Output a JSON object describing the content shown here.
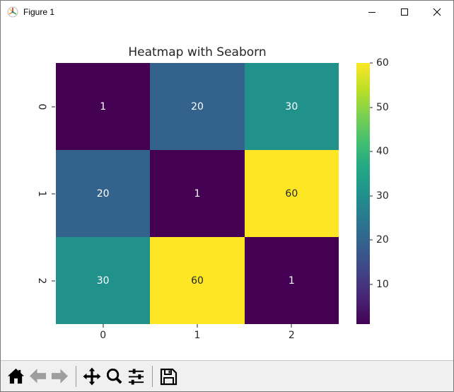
{
  "window": {
    "title": "Figure 1",
    "controls": [
      "minimize",
      "maximize",
      "close"
    ]
  },
  "chart_data": {
    "type": "heatmap",
    "title": "Heatmap with Seaborn",
    "colormap": "viridis",
    "vmin": 1,
    "vmax": 60,
    "x_tick_labels": [
      "0",
      "1",
      "2"
    ],
    "y_tick_labels": [
      "0",
      "1",
      "2"
    ],
    "matrix": [
      [
        1,
        20,
        30
      ],
      [
        20,
        1,
        60
      ],
      [
        30,
        60,
        1
      ]
    ],
    "cells": [
      {
        "v": "1",
        "bg": "#440154",
        "fg": "#ffffff"
      },
      {
        "v": "20",
        "bg": "#33638d",
        "fg": "#ffffff"
      },
      {
        "v": "30",
        "bg": "#21918c",
        "fg": "#ffffff"
      },
      {
        "v": "20",
        "bg": "#33638d",
        "fg": "#ffffff"
      },
      {
        "v": "1",
        "bg": "#440154",
        "fg": "#ffffff"
      },
      {
        "v": "60",
        "bg": "#fde725",
        "fg": "#262626"
      },
      {
        "v": "30",
        "bg": "#21918c",
        "fg": "#ffffff"
      },
      {
        "v": "60",
        "bg": "#fde725",
        "fg": "#262626"
      },
      {
        "v": "1",
        "bg": "#440154",
        "fg": "#ffffff"
      }
    ],
    "colorbar": {
      "ticks": [
        10,
        20,
        30,
        40,
        50,
        60
      ],
      "gradient": [
        "#440154 0%",
        "#482475 10%",
        "#414487 20%",
        "#355f8d 30%",
        "#2a788e 40%",
        "#21918c 50%",
        "#22a884 60%",
        "#44bf70 70%",
        "#7ad151 80%",
        "#bddf26 90%",
        "#fde725 100%"
      ],
      "legend_position": "right"
    },
    "grid": false
  },
  "toolbar": {
    "buttons": [
      "home",
      "back",
      "forward",
      "pan",
      "zoom",
      "configure-subplots",
      "save"
    ],
    "disabled_buttons": [
      "back",
      "forward"
    ]
  },
  "colors": {
    "toolbar_bg": "#f0f0f0",
    "canvas_bg": "#ffffff",
    "text": "#262626"
  }
}
